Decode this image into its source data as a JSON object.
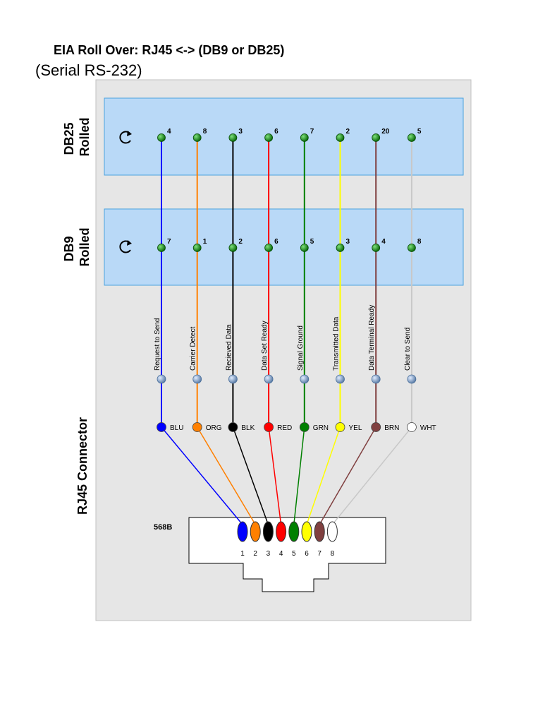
{
  "title": "EIA Roll Over: RJ45 <-> (DB9 or DB25)",
  "subtitle": "(Serial RS-232)",
  "sections": {
    "db25": [
      "DB25",
      "Rolled"
    ],
    "db9": [
      "DB9",
      "Rolled"
    ],
    "rj45": "RJ45 Connector"
  },
  "standard": "568B",
  "colors": {
    "panel_bg": "#e6e6e6",
    "block_bg": "#b9d9f7",
    "block_border": "#4aa3df",
    "pin_green": "#1a8c1a"
  },
  "wires": [
    {
      "db25_pin": "4",
      "db9_pin": "7",
      "signal": "Request to Send",
      "abbr": "BLU",
      "color": "#0000ff",
      "rj45_pin": "1"
    },
    {
      "db25_pin": "8",
      "db9_pin": "1",
      "signal": "Carrier Detect",
      "abbr": "ORG",
      "color": "#ff8000",
      "rj45_pin": "2"
    },
    {
      "db25_pin": "3",
      "db9_pin": "2",
      "signal": "Recieved Data",
      "abbr": "BLK",
      "color": "#000000",
      "rj45_pin": "3"
    },
    {
      "db25_pin": "6",
      "db9_pin": "6",
      "signal": "Data Set Ready",
      "abbr": "RED",
      "color": "#ff0000",
      "rj45_pin": "4"
    },
    {
      "db25_pin": "7",
      "db9_pin": "5",
      "signal": "Signal Ground",
      "abbr": "GRN",
      "color": "#008000",
      "rj45_pin": "5"
    },
    {
      "db25_pin": "2",
      "db9_pin": "3",
      "signal": "Transmitted Data",
      "abbr": "YEL",
      "color": "#ffff00",
      "rj45_pin": "6"
    },
    {
      "db25_pin": "20",
      "db9_pin": "4",
      "signal": "Data Terminal Ready",
      "abbr": "BRN",
      "color": "#804040",
      "rj45_pin": "7"
    },
    {
      "db25_pin": "5",
      "db9_pin": "8",
      "signal": "Clear to Send",
      "abbr": "WHT",
      "color": "#c8c8c8",
      "rj45_pin": "8",
      "dot_fill": "#ffffff"
    }
  ]
}
